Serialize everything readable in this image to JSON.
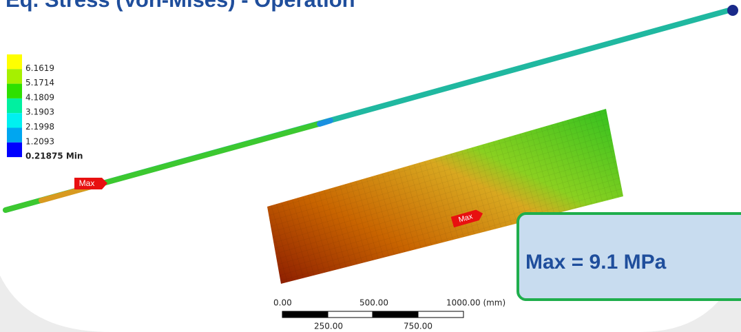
{
  "title": "Eq. Stress (Von-Mises) - Operation",
  "legend": {
    "entries": [
      {
        "label": "6.1619",
        "color": "#ffff00"
      },
      {
        "label": "5.1714",
        "color": "#a6f000"
      },
      {
        "label": "4.1809",
        "color": "#2ee000"
      },
      {
        "label": "3.1903",
        "color": "#00f0a0"
      },
      {
        "label": "2.1998",
        "color": "#00f0f0"
      },
      {
        "label": "1.2093",
        "color": "#00a6f0"
      },
      {
        "label": "0.21875 Min",
        "color": "#0000ff"
      }
    ]
  },
  "probe_labels": [
    "Max",
    "Max"
  ],
  "result_box": "Max = 9.1 MPa",
  "scale_bar": {
    "top_labels": [
      "0.00",
      "500.00",
      "1000.00 (mm)"
    ],
    "bottom_labels": [
      "250.00",
      "750.00"
    ]
  }
}
